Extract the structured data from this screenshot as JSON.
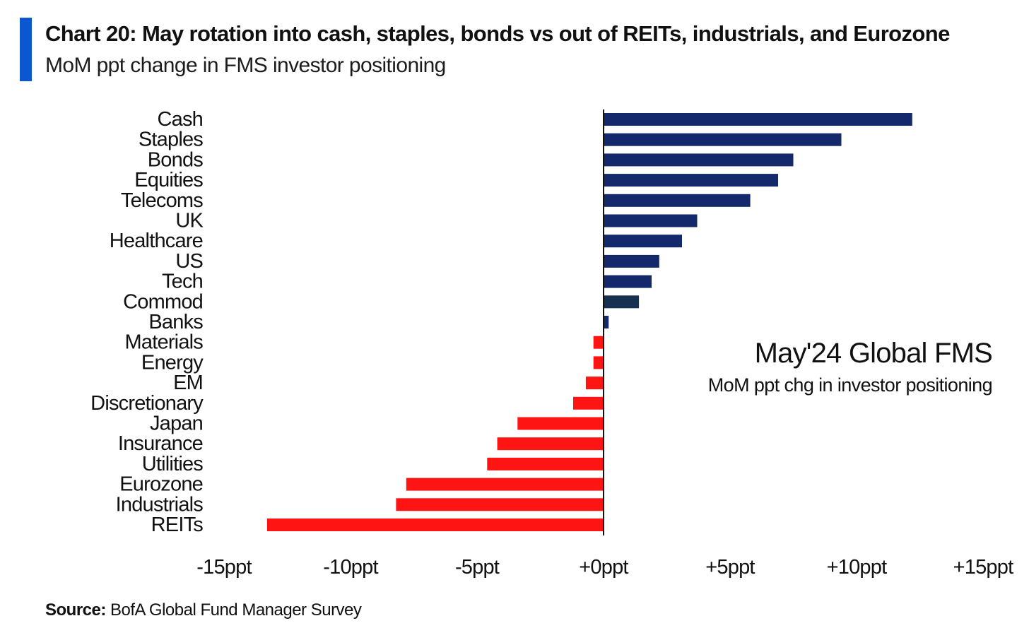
{
  "header": {
    "title": "Chart 20: May rotation into cash, staples, bonds vs out of REITs, industrials, and Eurozone",
    "subtitle": "MoM ppt change in FMS investor positioning"
  },
  "annotation": {
    "title": "May'24 Global FMS",
    "subtitle": "MoM ppt chg in investor positioning"
  },
  "footer": {
    "source_label": "Source:",
    "source_text": "BofA Global Fund Manager Survey"
  },
  "colors": {
    "accent": "#0a57d0",
    "positive": "#14296b",
    "positive_alt": "#17304f",
    "negative": "#ff1414",
    "axis": "#111111"
  },
  "chart_data": {
    "type": "bar",
    "orientation": "horizontal",
    "title": "Chart 20: May rotation into cash, staples, bonds vs out of REITs, industrials, and Eurozone",
    "subtitle": "MoM ppt change in FMS investor positioning",
    "xlabel": "",
    "ylabel": "",
    "xlim": [
      -15,
      15
    ],
    "x_ticks": [
      -15,
      -10,
      -5,
      0,
      5,
      10,
      15
    ],
    "x_tick_labels": [
      "-15ppt",
      "-10ppt",
      "-5ppt",
      "+0ppt",
      "+5ppt",
      "+10ppt",
      "+15ppt"
    ],
    "grid": false,
    "categories": [
      "Cash",
      "Staples",
      "Bonds",
      "Equities",
      "Telecoms",
      "UK",
      "Healthcare",
      "US",
      "Tech",
      "Commod",
      "Banks",
      "Materials",
      "Energy",
      "EM",
      "Discretionary",
      "Japan",
      "Insurance",
      "Utilities",
      "Eurozone",
      "Industrials",
      "REITs"
    ],
    "values": [
      12.2,
      9.4,
      7.5,
      6.9,
      5.8,
      3.7,
      3.1,
      2.2,
      1.9,
      1.4,
      0.2,
      -0.4,
      -0.4,
      -0.7,
      -1.2,
      -3.4,
      -4.2,
      -4.6,
      -7.8,
      -8.2,
      -13.3
    ],
    "series": [
      {
        "name": "May'24 Global FMS",
        "values": [
          12.2,
          9.4,
          7.5,
          6.9,
          5.8,
          3.7,
          3.1,
          2.2,
          1.9,
          1.4,
          0.2,
          -0.4,
          -0.4,
          -0.7,
          -1.2,
          -3.4,
          -4.2,
          -4.6,
          -7.8,
          -8.2,
          -13.3
        ]
      }
    ]
  }
}
